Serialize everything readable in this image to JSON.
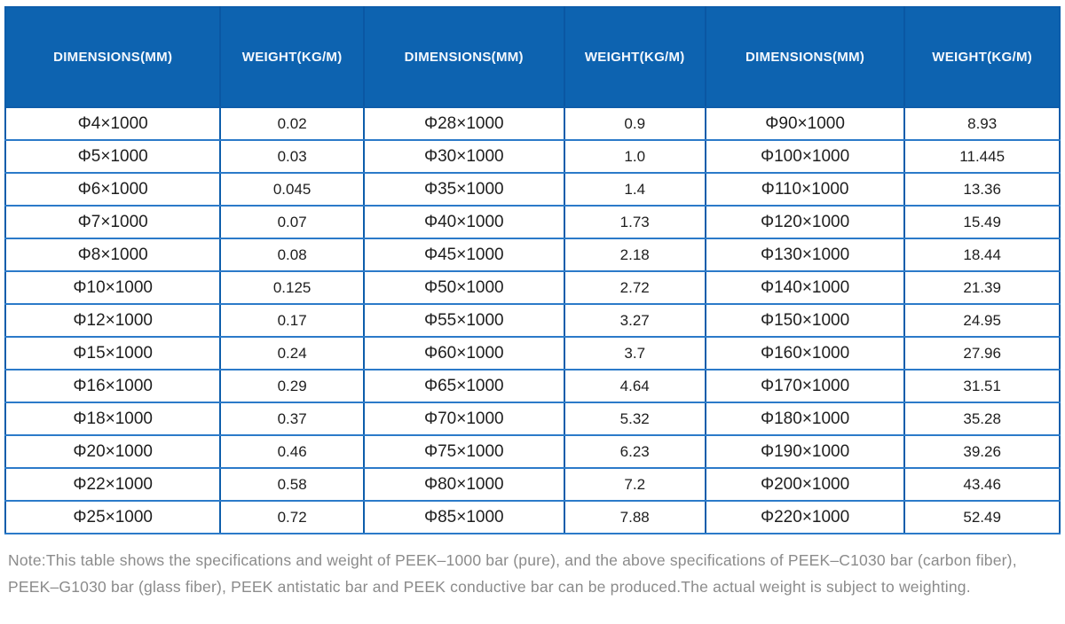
{
  "table": {
    "header_labels": [
      "DIMENSIONS(MM)",
      "WEIGHT(KG/M)",
      "DIMENSIONS(MM)",
      "WEIGHT(KG/M)",
      "DIMENSIONS(MM)",
      "WEIGHT(KG/M)"
    ],
    "rows": [
      [
        "Φ4×1000",
        "0.02",
        "Φ28×1000",
        "0.9",
        "Φ90×1000",
        "8.93"
      ],
      [
        "Φ5×1000",
        "0.03",
        "Φ30×1000",
        "1.0",
        "Φ100×1000",
        "11.445"
      ],
      [
        "Φ6×1000",
        "0.045",
        "Φ35×1000",
        "1.4",
        "Φ110×1000",
        "13.36"
      ],
      [
        "Φ7×1000",
        "0.07",
        "Φ40×1000",
        "1.73",
        "Φ120×1000",
        "15.49"
      ],
      [
        "Φ8×1000",
        "0.08",
        "Φ45×1000",
        "2.18",
        "Φ130×1000",
        "18.44"
      ],
      [
        "Φ10×1000",
        "0.125",
        "Φ50×1000",
        "2.72",
        "Φ140×1000",
        "21.39"
      ],
      [
        "Φ12×1000",
        "0.17",
        "Φ55×1000",
        "3.27",
        "Φ150×1000",
        "24.95"
      ],
      [
        "Φ15×1000",
        "0.24",
        "Φ60×1000",
        "3.7",
        "Φ160×1000",
        "27.96"
      ],
      [
        "Φ16×1000",
        "0.29",
        "Φ65×1000",
        "4.64",
        "Φ170×1000",
        "31.51"
      ],
      [
        "Φ18×1000",
        "0.37",
        "Φ70×1000",
        "5.32",
        "Φ180×1000",
        "35.28"
      ],
      [
        "Φ20×1000",
        "0.46",
        "Φ75×1000",
        "6.23",
        "Φ190×1000",
        "39.26"
      ],
      [
        "Φ22×1000",
        "0.58",
        "Φ80×1000",
        "7.2",
        "Φ200×1000",
        "43.46"
      ],
      [
        "Φ25×1000",
        "0.72",
        "Φ85×1000",
        "7.88",
        "Φ220×1000",
        "52.49"
      ]
    ]
  },
  "note": {
    "line1": "Note:This table shows the specifications and weight of PEEK–1000 bar (pure), and the above specifications of PEEK–C1030 bar (carbon fiber),",
    "line2": "PEEK–G1030 bar (glass fiber), PEEK antistatic bar and PEEK conductive bar can be produced.The actual weight is subject to weighting."
  },
  "colors": {
    "header_bg": "#0d63b0",
    "header_text": "#f4f8fd",
    "border_dark": "#0d5dab",
    "border_light": "#2b7ac9",
    "cell_text": "#1e1e1e",
    "note_text": "#8b8b8b"
  }
}
